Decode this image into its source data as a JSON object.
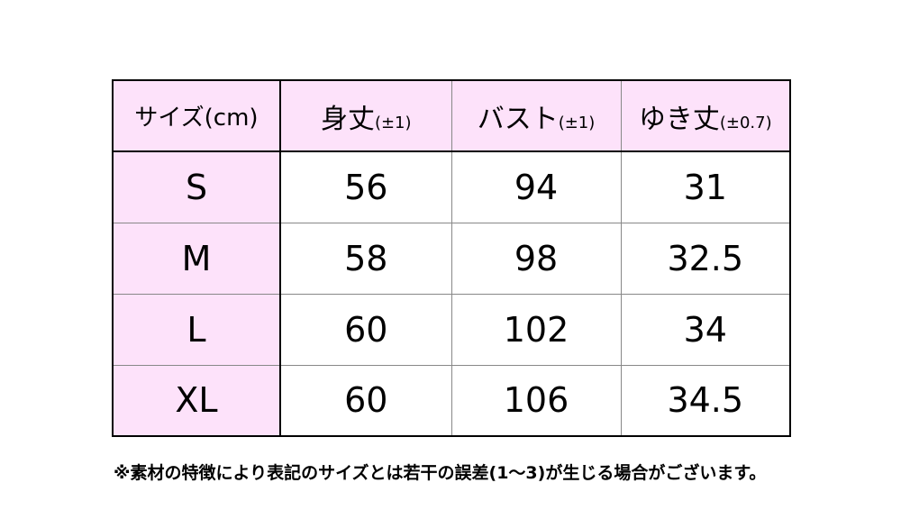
{
  "header": {
    "size": "サイズ(cm)",
    "columns": [
      {
        "label": "身丈",
        "tolerance": "(±1)"
      },
      {
        "label": "バスト",
        "tolerance": "(±1)"
      },
      {
        "label": "ゆき丈",
        "tolerance": "(±0.7)"
      }
    ]
  },
  "rows": [
    {
      "size": "S",
      "values": [
        "56",
        "94",
        "31"
      ]
    },
    {
      "size": "M",
      "values": [
        "58",
        "98",
        "32.5"
      ]
    },
    {
      "size": "L",
      "values": [
        "60",
        "102",
        "34"
      ]
    },
    {
      "size": "XL",
      "values": [
        "60",
        "106",
        "34.5"
      ]
    }
  ],
  "note": "※素材の特徴により表記のサイズとは若干の誤差(1～3)が生じる場合がございます。",
  "colors": {
    "header_bg": "#fde2fa",
    "border": "#000000"
  }
}
